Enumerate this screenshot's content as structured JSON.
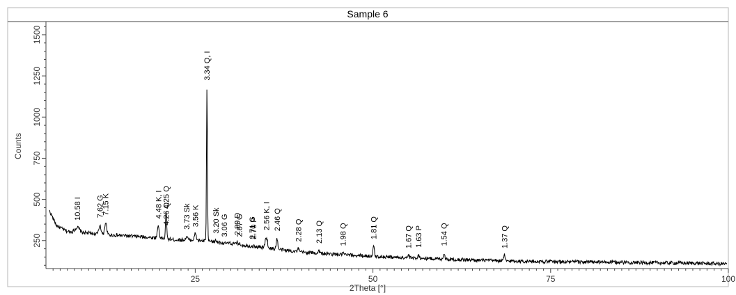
{
  "chart_data": {
    "type": "line",
    "title": "Sample 6",
    "xlabel": "2Theta [°]",
    "ylabel": "Counts",
    "xlim": [
      4,
      100
    ],
    "ylim": [
      80,
      1580
    ],
    "x_ticks": [
      25,
      50,
      75,
      100
    ],
    "y_ticks": [
      250,
      500,
      750,
      1000,
      1250,
      1500
    ],
    "grid": false,
    "legend": "none",
    "baseline_points": [
      {
        "x": 4.5,
        "y": 430
      },
      {
        "x": 5.5,
        "y": 340
      },
      {
        "x": 7,
        "y": 305
      },
      {
        "x": 10,
        "y": 295
      },
      {
        "x": 12.5,
        "y": 285
      },
      {
        "x": 15,
        "y": 280
      },
      {
        "x": 20,
        "y": 265
      },
      {
        "x": 22,
        "y": 255
      },
      {
        "x": 25,
        "y": 252
      },
      {
        "x": 27,
        "y": 245
      },
      {
        "x": 30,
        "y": 232
      },
      {
        "x": 33,
        "y": 215
      },
      {
        "x": 36,
        "y": 200
      },
      {
        "x": 40,
        "y": 180
      },
      {
        "x": 45,
        "y": 165
      },
      {
        "x": 50,
        "y": 155
      },
      {
        "x": 55,
        "y": 145
      },
      {
        "x": 60,
        "y": 138
      },
      {
        "x": 65,
        "y": 130
      },
      {
        "x": 70,
        "y": 125
      },
      {
        "x": 75,
        "y": 122
      },
      {
        "x": 80,
        "y": 120
      },
      {
        "x": 85,
        "y": 118
      },
      {
        "x": 90,
        "y": 115
      },
      {
        "x": 95,
        "y": 113
      },
      {
        "x": 99.8,
        "y": 108
      }
    ],
    "peaks": [
      {
        "label": "10.58 I",
        "x": 8.4,
        "y": 330,
        "width": 0.45
      },
      {
        "label": "7.62 G",
        "x": 11.6,
        "y": 345,
        "width": 0.2
      },
      {
        "label": "7.15 K",
        "x": 12.4,
        "y": 360,
        "width": 0.2
      },
      {
        "label": "4.48 K, I",
        "x": 19.8,
        "y": 340,
        "width": 0.18
      },
      {
        "label": "4.26 Q",
        "x": 20.9,
        "y": 300,
        "width": 0.12
      },
      {
        "label": "4.25 Q",
        "x": 20.9,
        "y": 400,
        "width": 0.1
      },
      {
        "label": "3.73 Sk",
        "x": 23.8,
        "y": 275,
        "width": 0.18
      },
      {
        "label": "3.56 K",
        "x": 25.0,
        "y": 290,
        "width": 0.2
      },
      {
        "label": "3.34 Q, I",
        "x": 26.65,
        "y": 1180,
        "width": 0.09
      },
      {
        "label": "3.20 Sk",
        "x": 27.9,
        "y": 250,
        "width": 0.15
      },
      {
        "label": "3.06 G",
        "x": 29.1,
        "y": 230,
        "width": 0.15
      },
      {
        "label": "2.89 D",
        "x": 30.9,
        "y": 240,
        "width": 0.15
      },
      {
        "label": "2.87 G",
        "x": 31.2,
        "y": 230,
        "width": 0.15
      },
      {
        "label": "2.71 G",
        "x": 33.0,
        "y": 215,
        "width": 0.15
      },
      {
        "label": "2.70 P",
        "x": 33.2,
        "y": 215,
        "width": 0.15
      },
      {
        "label": "2.56 K, I",
        "x": 35.0,
        "y": 270,
        "width": 0.22
      },
      {
        "label": "2.46 Q",
        "x": 36.5,
        "y": 265,
        "width": 0.14
      },
      {
        "label": "2.28 Q",
        "x": 39.5,
        "y": 200,
        "width": 0.14
      },
      {
        "label": "2.13 Q",
        "x": 42.4,
        "y": 190,
        "width": 0.14
      },
      {
        "label": "1.98 Q",
        "x": 45.8,
        "y": 175,
        "width": 0.14
      },
      {
        "label": "1.81 Q",
        "x": 50.1,
        "y": 215,
        "width": 0.14
      },
      {
        "label": "1.67 Q",
        "x": 55.0,
        "y": 160,
        "width": 0.14
      },
      {
        "label": "1.63 P",
        "x": 56.4,
        "y": 165,
        "width": 0.14
      },
      {
        "label": "1.54 Q",
        "x": 60.0,
        "y": 175,
        "width": 0.14
      },
      {
        "label": "1.37 Q",
        "x": 68.5,
        "y": 160,
        "width": 0.14
      }
    ]
  }
}
